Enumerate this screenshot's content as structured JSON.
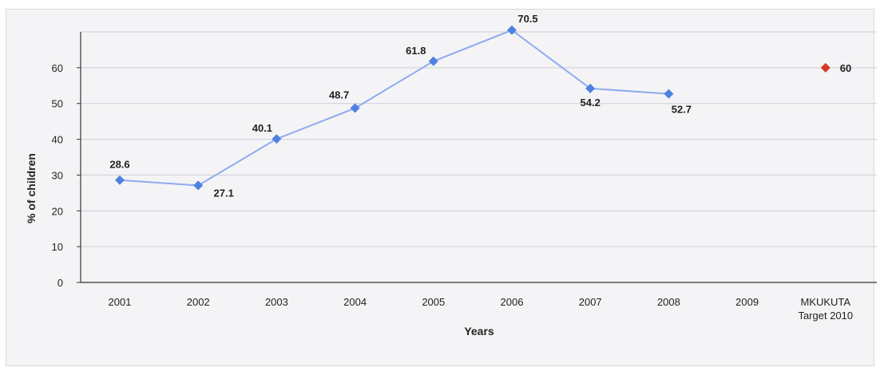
{
  "chart_data": {
    "type": "line",
    "title": "",
    "xlabel": "Years",
    "ylabel": "% of children",
    "ylim": [
      0,
      70
    ],
    "y_ticks": [
      0,
      10,
      20,
      30,
      40,
      50,
      60
    ],
    "grid": true,
    "categories": [
      "2001",
      "2002",
      "2003",
      "2004",
      "2005",
      "2006",
      "2007",
      "2008",
      "2009",
      "MKUKUTA Target 2010"
    ],
    "category_lines": [
      [
        "2001"
      ],
      [
        "2002"
      ],
      [
        "2003"
      ],
      [
        "2004"
      ],
      [
        "2005"
      ],
      [
        "2006"
      ],
      [
        "2007"
      ],
      [
        "2008"
      ],
      [
        "2009"
      ],
      [
        "MKUKUTA",
        "Target 2010"
      ]
    ],
    "series": [
      {
        "values": [
          28.6,
          27.1,
          40.1,
          48.7,
          61.8,
          70.5,
          54.2,
          52.7,
          null,
          null
        ],
        "labels": [
          "28.6",
          "27.1",
          "40.1",
          "48.7",
          "61.8",
          "70.5",
          "54.2",
          "52.7",
          "",
          ""
        ],
        "color": "#4f81e0"
      },
      {
        "values": [
          null,
          null,
          null,
          null,
          null,
          null,
          null,
          null,
          null,
          60
        ],
        "labels": [
          "",
          "",
          "",
          "",
          "",
          "",
          "",
          "",
          "",
          "60"
        ],
        "color": "#d63a2a"
      }
    ],
    "colors": {
      "background": "#f4f4f6",
      "gridline": "#cfcfd6",
      "axis": "#333333",
      "line": "#8eaaf0"
    }
  }
}
